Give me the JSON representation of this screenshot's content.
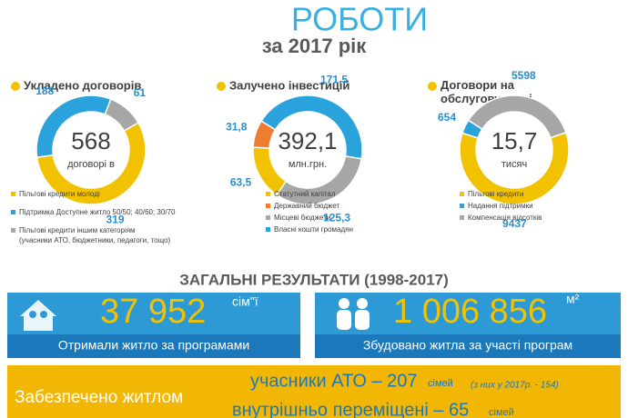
{
  "header": {
    "title": "РОБОТИ",
    "subtitle": "за 2017 рік"
  },
  "chart_data": [
    {
      "type": "pie",
      "title": "Укладено договорів",
      "center": "568",
      "center_unit": "договорі в",
      "values": [
        319,
        188,
        61
      ],
      "colors": [
        "#f2c200",
        "#2aa3dc",
        "#a6a6a6"
      ],
      "legend": [
        {
          "name": "Пільгові кредити молоді",
          "color": "#f2c200"
        },
        {
          "name": "Підтримка Доступне житло 50/50; 40/60; 30/70",
          "color": "#2aa3dc"
        },
        {
          "name": "Пільгові кредити іншим категоріям (учасники АТО, бюджетники, педагоги, тощо)",
          "color": "#a6a6a6"
        }
      ]
    },
    {
      "type": "pie",
      "title": "Залучено інвестицій",
      "center": "392,1",
      "center_unit": "млн.грн.",
      "values": [
        171.5,
        125.3,
        63.5,
        31.8
      ],
      "value_labels": [
        "171,5",
        "125,3",
        "63,5",
        "31,8"
      ],
      "colors": [
        "#2aa3dc",
        "#a6a6a6",
        "#f2c200",
        "#ee7d31"
      ],
      "legend": [
        {
          "name": "Статутний капітал",
          "color": "#f2c200"
        },
        {
          "name": "Державний бюджет",
          "color": "#ee7d31"
        },
        {
          "name": "Місцеві бюджети",
          "color": "#a6a6a6"
        },
        {
          "name": "Власні кошти громадян",
          "color": "#2aa3dc"
        }
      ]
    },
    {
      "type": "pie",
      "title": "Договори на обслуговуванні",
      "center": "15,7",
      "center_unit": "тисяч",
      "values": [
        654,
        5598,
        9437
      ],
      "colors": [
        "#2aa3dc",
        "#a6a6a6",
        "#f2c200"
      ],
      "legend": [
        {
          "name": "Пільгові кредити",
          "color": "#f2c200"
        },
        {
          "name": "Надання підтримки",
          "color": "#2aa3dc"
        },
        {
          "name": "Компенсація відсотків",
          "color": "#a6a6a6"
        }
      ]
    }
  ],
  "results": {
    "title": "ЗАГАЛЬНІ  РЕЗУЛЬТАТИ (1998-2017)",
    "boxes": [
      {
        "value": "37 952",
        "unit": "сім\"ї",
        "caption": "Отримали житло за програмами"
      },
      {
        "value": "1 006 856",
        "unit": "м²",
        "caption": "Збудовано житла за участі програм"
      }
    ]
  },
  "banner": {
    "label": "Забезпечено житлом",
    "line1": "учасники АТО – 207",
    "line1_unit": "сімей",
    "line1_note": "(з них у 2017р. - 154)",
    "line2": "внутрішньо переміщені – 65",
    "line2_unit": "сімей"
  }
}
